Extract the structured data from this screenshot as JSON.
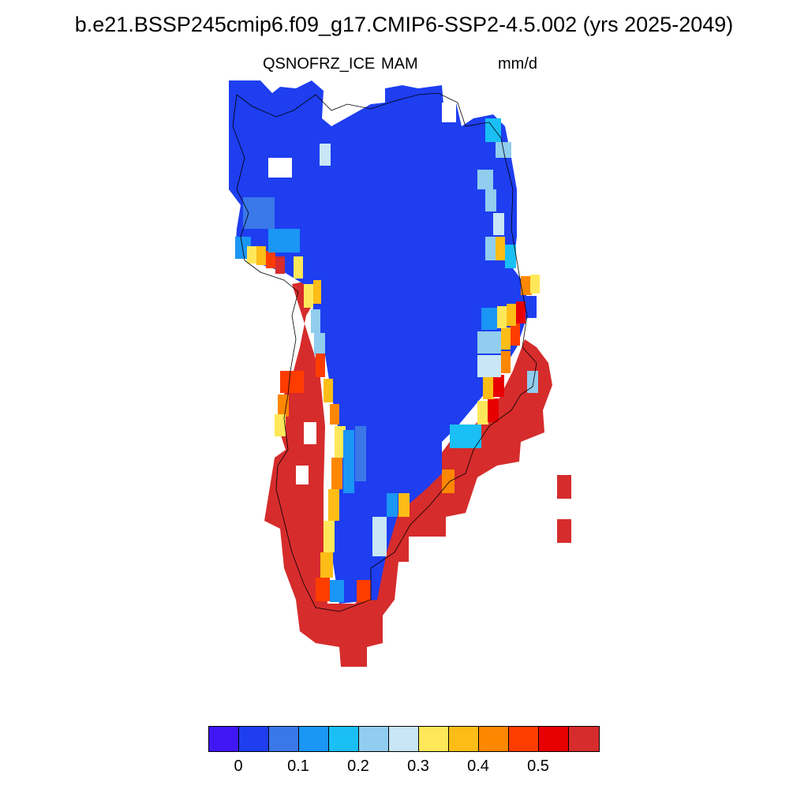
{
  "title": "b.e21.BSSP245cmip6.f09_g17.CMIP6-SSP2-4.5.002 (yrs 2025-2049)",
  "variable": "QSNOFRZ_ICE",
  "season": "MAM",
  "units": "mm/d",
  "colorbar": {
    "colors": [
      "#4016f5",
      "#1e3ef0",
      "#3a78e8",
      "#1a96f5",
      "#19bff5",
      "#90cdee",
      "#c8e6f5",
      "#fee85a",
      "#fdbd16",
      "#fd8700",
      "#fd3c00",
      "#e80000",
      "#d62c2c"
    ],
    "labels": [
      "0",
      "0.1",
      "0.2",
      "0.3",
      "0.4",
      "0.5"
    ]
  },
  "legend_labels": {
    "l0": "0",
    "l1": "0.1",
    "l2": "0.2",
    "l3": "0.3",
    "l4": "0.4",
    "l5": "0.5"
  },
  "map_colors": {
    "interior": "#1e3ef0",
    "coast_south": "#d62c2c",
    "coastline": "#000000"
  }
}
